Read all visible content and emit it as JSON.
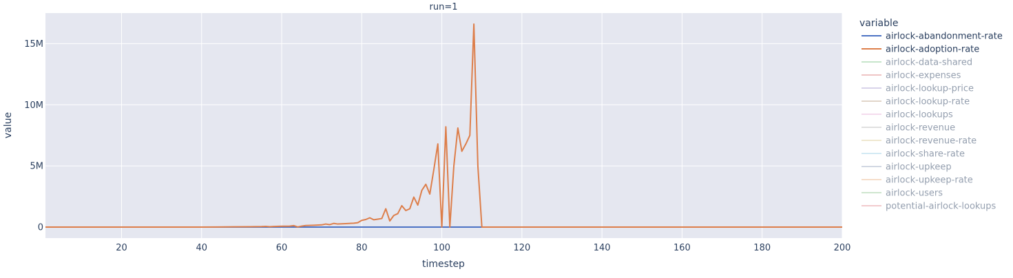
{
  "chart_data": {
    "type": "line",
    "facet_title": "run=1",
    "xlabel": "timestep",
    "ylabel": "value",
    "xlim": [
      1,
      200
    ],
    "ylim": [
      -900000,
      17500000
    ],
    "x_ticks": [
      20,
      40,
      60,
      80,
      100,
      120,
      140,
      160,
      180,
      200
    ],
    "y_ticks": [
      0,
      5000000,
      10000000,
      15000000
    ],
    "y_tick_labels": [
      "0",
      "5M",
      "10M",
      "15M"
    ],
    "grid": true,
    "legend": {
      "title": "variable",
      "placement": "right",
      "entries": [
        {
          "name": "airlock-abandonment-rate",
          "color": "#4c72c4",
          "active": true
        },
        {
          "name": "airlock-adoption-rate",
          "color": "#dd7e4a",
          "active": true
        },
        {
          "name": "airlock-data-shared",
          "color": "#8fcc99",
          "active": false
        },
        {
          "name": "airlock-expenses",
          "color": "#e08a8a",
          "active": false
        },
        {
          "name": "airlock-lookup-price",
          "color": "#b3a8d4",
          "active": false
        },
        {
          "name": "airlock-lookup-rate",
          "color": "#c4ad95",
          "active": false
        },
        {
          "name": "airlock-lookups",
          "color": "#eab8dc",
          "active": false
        },
        {
          "name": "airlock-revenue",
          "color": "#c2c2c2",
          "active": false
        },
        {
          "name": "airlock-revenue-rate",
          "color": "#e0d2a0",
          "active": false
        },
        {
          "name": "airlock-share-rate",
          "color": "#a7d6ea",
          "active": false
        },
        {
          "name": "airlock-upkeep",
          "color": "#a7b2c8",
          "active": false
        },
        {
          "name": "airlock-upkeep-rate",
          "color": "#efbd94",
          "active": false
        },
        {
          "name": "airlock-users",
          "color": "#9ecf9e",
          "active": false
        },
        {
          "name": "potential-airlock-lookups",
          "color": "#e6999c",
          "active": false
        }
      ]
    },
    "series": [
      {
        "name": "airlock-abandonment-rate",
        "color": "#4c72c4",
        "x": [
          1,
          200
        ],
        "y": [
          0,
          0
        ]
      },
      {
        "name": "airlock-adoption-rate",
        "color": "#dd7e4a",
        "x": [
          1,
          40,
          44,
          48,
          52,
          55,
          56,
          57,
          58,
          60,
          62,
          63,
          64,
          65,
          66,
          68,
          70,
          71,
          72,
          73,
          74,
          76,
          78,
          79,
          80,
          81,
          82,
          83,
          84,
          85,
          86,
          87,
          88,
          89,
          90,
          91,
          92,
          93,
          94,
          95,
          96,
          97,
          98,
          99,
          100,
          101,
          102,
          103,
          104,
          105,
          106,
          107,
          108,
          109,
          110,
          200
        ],
        "y": [
          0,
          0,
          10000,
          20000,
          30000,
          40000,
          60000,
          30000,
          50000,
          70000,
          80000,
          120000,
          10000,
          80000,
          130000,
          150000,
          180000,
          250000,
          200000,
          300000,
          250000,
          280000,
          320000,
          360000,
          550000,
          620000,
          760000,
          600000,
          650000,
          700000,
          1500000,
          500000,
          950000,
          1100000,
          1750000,
          1350000,
          1500000,
          2450000,
          1800000,
          3000000,
          3500000,
          2700000,
          4700000,
          6800000,
          0,
          8200000,
          0,
          5000000,
          8100000,
          6200000,
          6800000,
          7500000,
          16600000,
          5000000,
          0,
          0
        ]
      }
    ]
  }
}
